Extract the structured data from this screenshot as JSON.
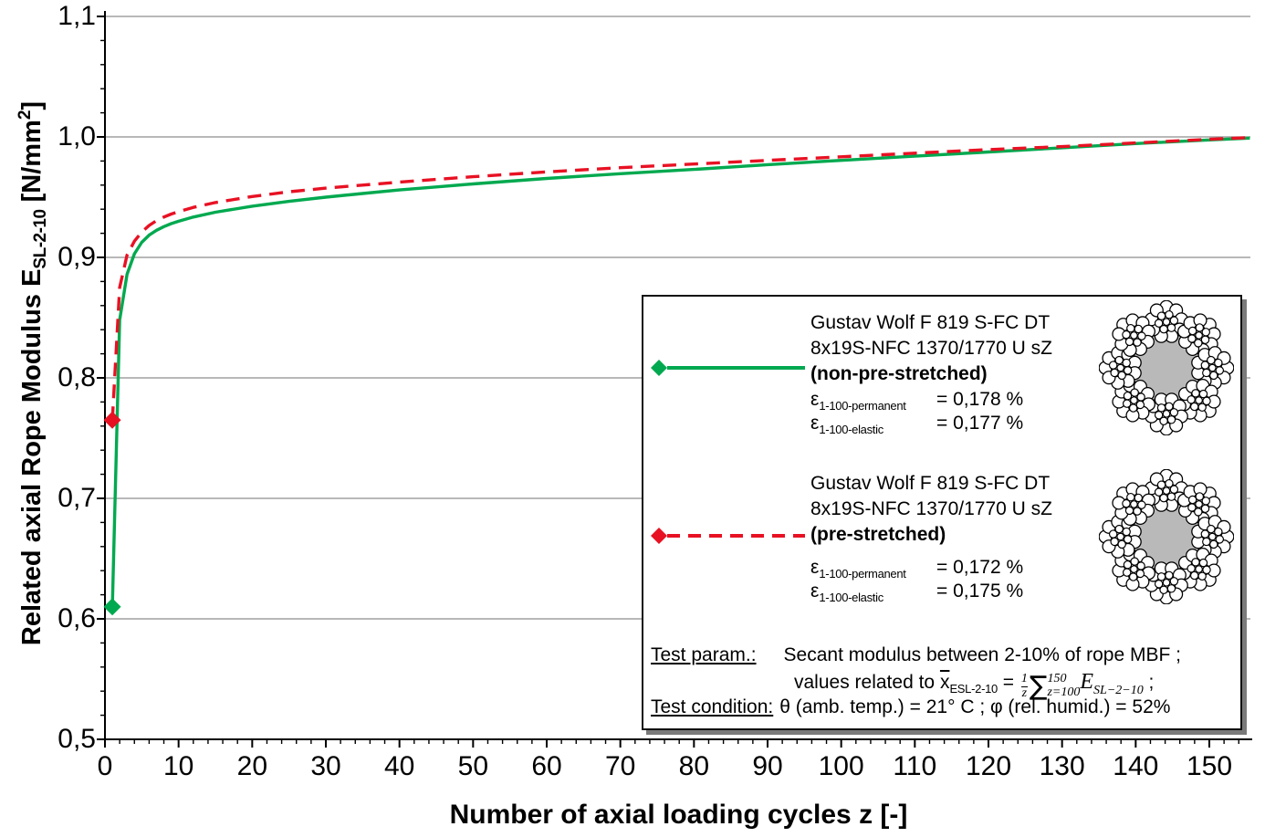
{
  "chart_data": {
    "type": "line",
    "title": "",
    "xlabel": "Number of axial loading cycles z [-]",
    "ylabel": "Related axial Rope Modulus E_SL-2-10 [N/mm2]",
    "xlim": [
      0,
      155.8
    ],
    "ylim": [
      0.5,
      1.1
    ],
    "grid": "horizontal-major",
    "gridline_color": "#8e8e8e",
    "x_major_ticks": [
      0,
      10,
      20,
      30,
      40,
      50,
      60,
      70,
      80,
      90,
      100,
      110,
      120,
      130,
      140,
      150
    ],
    "x_tick_labels": [
      "0",
      "10",
      "20",
      "30",
      "40",
      "50",
      "60",
      "70",
      "80",
      "90",
      "100",
      "110",
      "120",
      "130",
      "140",
      "150"
    ],
    "x_minor_step": 2,
    "y_major_ticks": [
      0.5,
      0.6,
      0.7,
      0.8,
      0.9,
      1.0,
      1.1
    ],
    "y_tick_labels": [
      "0,5",
      "0,6",
      "0,7",
      "0,8",
      "0,9",
      "1,0",
      "1,1"
    ],
    "y_minor_step": 0.02,
    "series": [
      {
        "name": "non-pre-stretched",
        "color": "#00A94F",
        "style": "solid",
        "marker": "diamond",
        "marker_at": [
          1,
          0.61
        ],
        "points": [
          [
            1,
            0.61
          ],
          [
            2,
            0.848
          ],
          [
            3,
            0.886
          ],
          [
            4,
            0.903
          ],
          [
            5,
            0.9125
          ],
          [
            6,
            0.9185
          ],
          [
            7,
            0.9225
          ],
          [
            8,
            0.9255
          ],
          [
            9,
            0.928
          ],
          [
            10,
            0.93
          ],
          [
            12,
            0.9335
          ],
          [
            15,
            0.9375
          ],
          [
            20,
            0.9425
          ],
          [
            25,
            0.9465
          ],
          [
            30,
            0.95
          ],
          [
            35,
            0.953
          ],
          [
            40,
            0.956
          ],
          [
            45,
            0.9585
          ],
          [
            50,
            0.961
          ],
          [
            60,
            0.9655
          ],
          [
            70,
            0.9695
          ],
          [
            80,
            0.973
          ],
          [
            90,
            0.977
          ],
          [
            100,
            0.9805
          ],
          [
            110,
            0.984
          ],
          [
            120,
            0.9875
          ],
          [
            130,
            0.991
          ],
          [
            140,
            0.9945
          ],
          [
            150,
            0.9975
          ],
          [
            155.5,
            0.999
          ]
        ]
      },
      {
        "name": "pre-stretched",
        "color": "#E81123",
        "style": "dashed",
        "marker": "diamond",
        "marker_at": [
          1,
          0.765
        ],
        "points": [
          [
            1,
            0.765
          ],
          [
            2,
            0.875
          ],
          [
            3,
            0.902
          ],
          [
            4,
            0.9135
          ],
          [
            5,
            0.921
          ],
          [
            6,
            0.9265
          ],
          [
            7,
            0.9305
          ],
          [
            8,
            0.9335
          ],
          [
            9,
            0.936
          ],
          [
            10,
            0.938
          ],
          [
            12,
            0.9415
          ],
          [
            15,
            0.9455
          ],
          [
            20,
            0.9505
          ],
          [
            25,
            0.9545
          ],
          [
            30,
            0.9575
          ],
          [
            35,
            0.96
          ],
          [
            40,
            0.9625
          ],
          [
            45,
            0.9648
          ],
          [
            50,
            0.967
          ],
          [
            60,
            0.971
          ],
          [
            70,
            0.9745
          ],
          [
            80,
            0.9775
          ],
          [
            90,
            0.9805
          ],
          [
            100,
            0.9835
          ],
          [
            110,
            0.9865
          ],
          [
            120,
            0.9895
          ],
          [
            130,
            0.992
          ],
          [
            140,
            0.995
          ],
          [
            150,
            0.998
          ],
          [
            155.5,
            0.9995
          ]
        ]
      }
    ]
  },
  "y_axis_title": {
    "pre": "Related axial Rope Modulus E",
    "sub": "SL-2-10",
    "mid": " [N/mm",
    "sup": "2",
    "post": "]"
  },
  "legend": {
    "rope_core_color": "#b9b9b9",
    "entries": [
      {
        "line1": "Gustav Wolf F 819 S-FC DT",
        "line2": "8x19S-NFC 1370/1770 U sZ",
        "line3": "(non-pre-stretched)",
        "eps1_symbol": "ε",
        "eps1_sub": "1-100-permanent",
        "eps1_value": "= 0,178 %",
        "eps2_symbol": "ε",
        "eps2_sub": "1-100-elastic",
        "eps2_value": "= 0,177 %"
      },
      {
        "line1": "Gustav Wolf F 819 S-FC DT",
        "line2": "8x19S-NFC 1370/1770 U sZ",
        "line3": "(pre-stretched)",
        "eps1_symbol": "ε",
        "eps1_sub": "1-100-permanent",
        "eps1_value": "= 0,172 %",
        "eps2_symbol": "ε",
        "eps2_sub": "1-100-elastic",
        "eps2_value": "= 0,175 %"
      }
    ],
    "test_param_label": "Test param.:",
    "test_param_text": "Secant modulus between 2-10% of rope MBF ;",
    "formula": {
      "prefix": "values related to ",
      "xbar": "x",
      "xbar_sub": "ESL-2-10",
      "equals": " = ",
      "frac_num": "1",
      "frac_den": "z",
      "sigma": "∑",
      "sigma_top": "150",
      "sigma_bottom": "z=100",
      "e_term": "E",
      "e_sub": "SL−2−10",
      "suffix": " ;"
    },
    "test_condition_label": "Test condition:",
    "test_condition_text": "θ (amb. temp.) = 21° C ; φ (rel. humid.) = 52%"
  }
}
